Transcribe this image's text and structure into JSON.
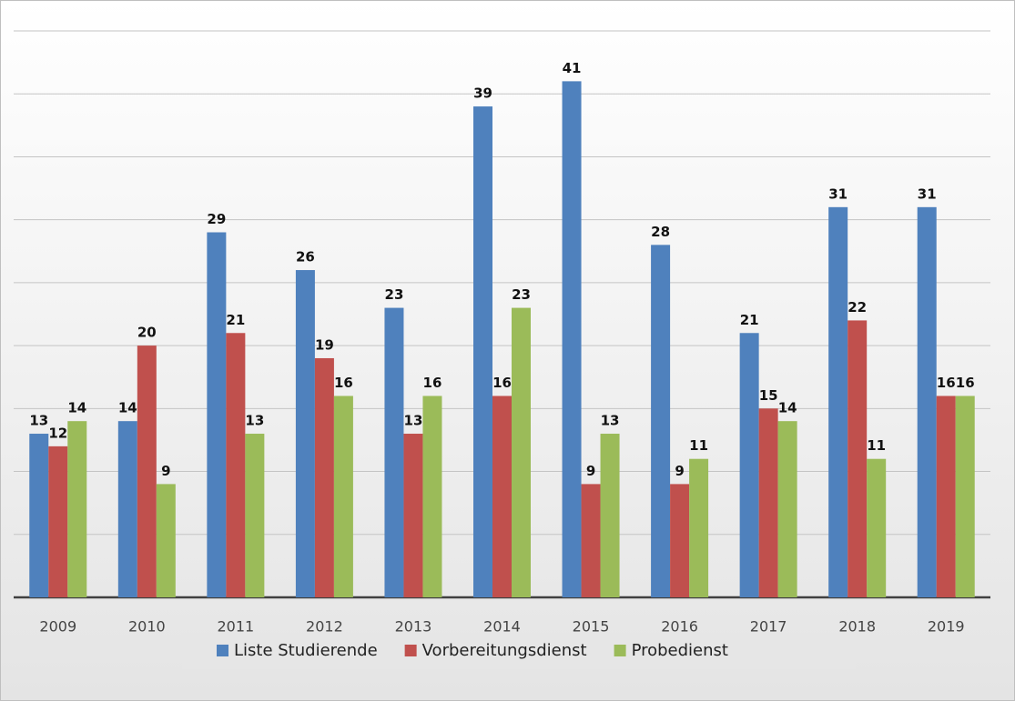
{
  "chart_data": {
    "type": "bar",
    "categories": [
      "2009",
      "2010",
      "2011",
      "2012",
      "2013",
      "2014",
      "2015",
      "2016",
      "2017",
      "2018",
      "2019"
    ],
    "series": [
      {
        "name": "Liste Studierende",
        "color": "#4f81bd",
        "values": [
          13,
          14,
          29,
          26,
          23,
          39,
          41,
          28,
          21,
          31,
          31
        ]
      },
      {
        "name": "Vorbereitungsdienst",
        "color": "#c0504d",
        "values": [
          12,
          20,
          21,
          19,
          13,
          16,
          9,
          9,
          15,
          22,
          16
        ]
      },
      {
        "name": "Probedienst",
        "color": "#9bbb59",
        "values": [
          14,
          9,
          13,
          16,
          16,
          23,
          13,
          11,
          14,
          11,
          16
        ]
      }
    ],
    "ylim": [
      0,
      45
    ],
    "yticks": [
      0,
      5,
      10,
      15,
      20,
      25,
      30,
      35,
      40,
      45
    ],
    "grid": true,
    "legend": "bottom"
  }
}
